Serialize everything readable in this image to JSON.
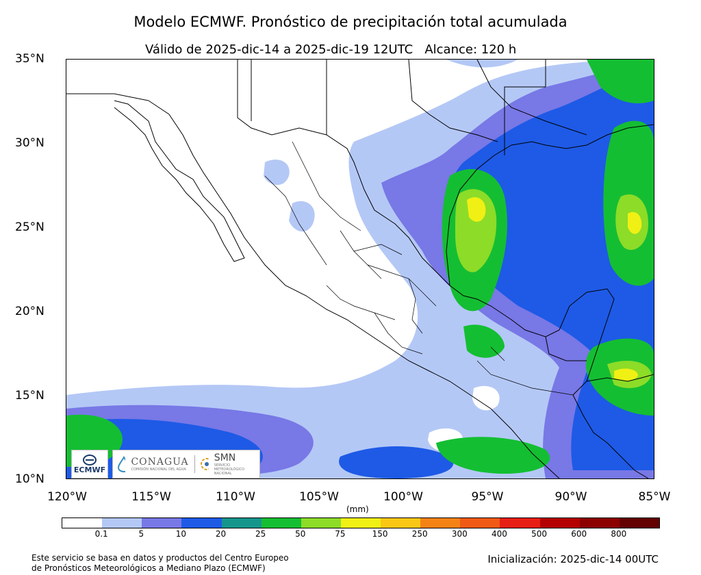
{
  "title": "Modelo ECMWF. Pronóstico de precipitación total acumulada",
  "subtitle": "Válido de 2025-dic-14 a 2025-dic-19 12UTC   Alcance: 120 h",
  "axes": {
    "lat_labels": [
      "35°N",
      "30°N",
      "25°N",
      "20°N",
      "15°N",
      "10°N"
    ],
    "lon_labels": [
      "120°W",
      "115°W",
      "110°W",
      "105°W",
      "100°W",
      "95°W",
      "90°W",
      "85°W"
    ],
    "lat_range": [
      10,
      35
    ],
    "lon_range": [
      -120,
      -85
    ]
  },
  "colorbar": {
    "units": "(mm)",
    "labels": [
      "0.1",
      "5",
      "10",
      "20",
      "25",
      "50",
      "75",
      "150",
      "250",
      "300",
      "400",
      "500",
      "600",
      "800"
    ],
    "colors": [
      "#ffffff",
      "#b4c8f6",
      "#7878e6",
      "#1e5ae6",
      "#14968c",
      "#14be32",
      "#8cdc28",
      "#f0f014",
      "#fac814",
      "#f58214",
      "#f05a14",
      "#e61e14",
      "#b40000",
      "#8c0000",
      "#640000"
    ]
  },
  "logos": {
    "ecmwf": "ECMWF",
    "conagua": "CONAGUA",
    "conagua_sub": "COMISIÓN NACIONAL DEL AGUA",
    "smn": "SMN",
    "smn_sub": "SERVICIO METEOROLÓGICO NACIONAL"
  },
  "footer": {
    "left_line1": "Este servicio se basa en datos y productos del Centro Europeo",
    "left_line2": "de Pronósticos Meteorológicos a Mediano Plazo (ECMWF)",
    "right": "Inicialización: 2025-dic-14 00UTC"
  }
}
